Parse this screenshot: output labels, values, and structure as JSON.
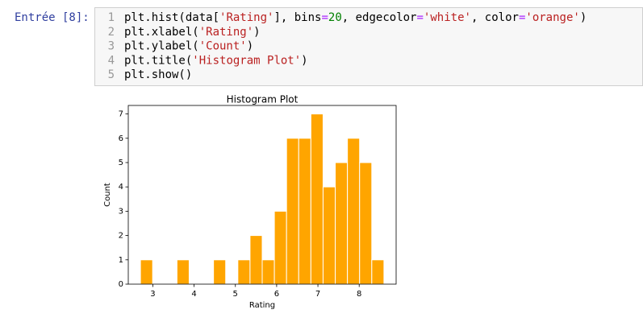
{
  "prompt": "Entrée [8]:",
  "code": {
    "line_numbers": [
      1,
      2,
      3,
      4,
      5
    ],
    "lines": [
      [
        {
          "text": "plt.hist(data[",
          "color": "#000000"
        },
        {
          "text": "'Rating'",
          "color": "#ba2121"
        },
        {
          "text": "], bins",
          "color": "#000000"
        },
        {
          "text": "=",
          "color": "#aa22ff"
        },
        {
          "text": "20",
          "color": "#008000"
        },
        {
          "text": ", edgecolor",
          "color": "#000000"
        },
        {
          "text": "=",
          "color": "#aa22ff"
        },
        {
          "text": "'white'",
          "color": "#ba2121"
        },
        {
          "text": ", color",
          "color": "#000000"
        },
        {
          "text": "=",
          "color": "#aa22ff"
        },
        {
          "text": "'orange'",
          "color": "#ba2121"
        },
        {
          "text": ")",
          "color": "#000000"
        }
      ],
      [
        {
          "text": "plt.xlabel(",
          "color": "#000000"
        },
        {
          "text": "'Rating'",
          "color": "#ba2121"
        },
        {
          "text": ")",
          "color": "#000000"
        }
      ],
      [
        {
          "text": "plt.ylabel(",
          "color": "#000000"
        },
        {
          "text": "'Count'",
          "color": "#ba2121"
        },
        {
          "text": ")",
          "color": "#000000"
        }
      ],
      [
        {
          "text": "plt.title(",
          "color": "#000000"
        },
        {
          "text": "'Histogram Plot'",
          "color": "#ba2121"
        },
        {
          "text": ")",
          "color": "#000000"
        }
      ],
      [
        {
          "text": "plt.show()",
          "color": "#000000"
        }
      ]
    ]
  },
  "chart_data": {
    "type": "histogram",
    "title": "Histogram Plot",
    "x_label": "Rating",
    "y_label": "Count",
    "bins": [
      2.7,
      2.995,
      3.29,
      3.585,
      3.88,
      4.175,
      4.47,
      4.765,
      5.06,
      5.355,
      5.65,
      5.945,
      6.24,
      6.535,
      6.83,
      7.125,
      7.42,
      7.715,
      8.01,
      8.305,
      8.6
    ],
    "values": [
      1,
      0,
      0,
      1,
      0,
      0,
      1,
      0,
      1,
      2,
      1,
      3,
      6,
      6,
      7,
      4,
      5,
      6,
      5,
      1
    ],
    "color": "orange",
    "edgecolor": "white",
    "xlim": [
      2.405,
      8.895
    ],
    "xticks": [
      3,
      4,
      5,
      6,
      7,
      8
    ],
    "ylim": [
      0,
      7.35
    ],
    "yticks": [
      0,
      1,
      2,
      3,
      4,
      5,
      6,
      7
    ]
  }
}
